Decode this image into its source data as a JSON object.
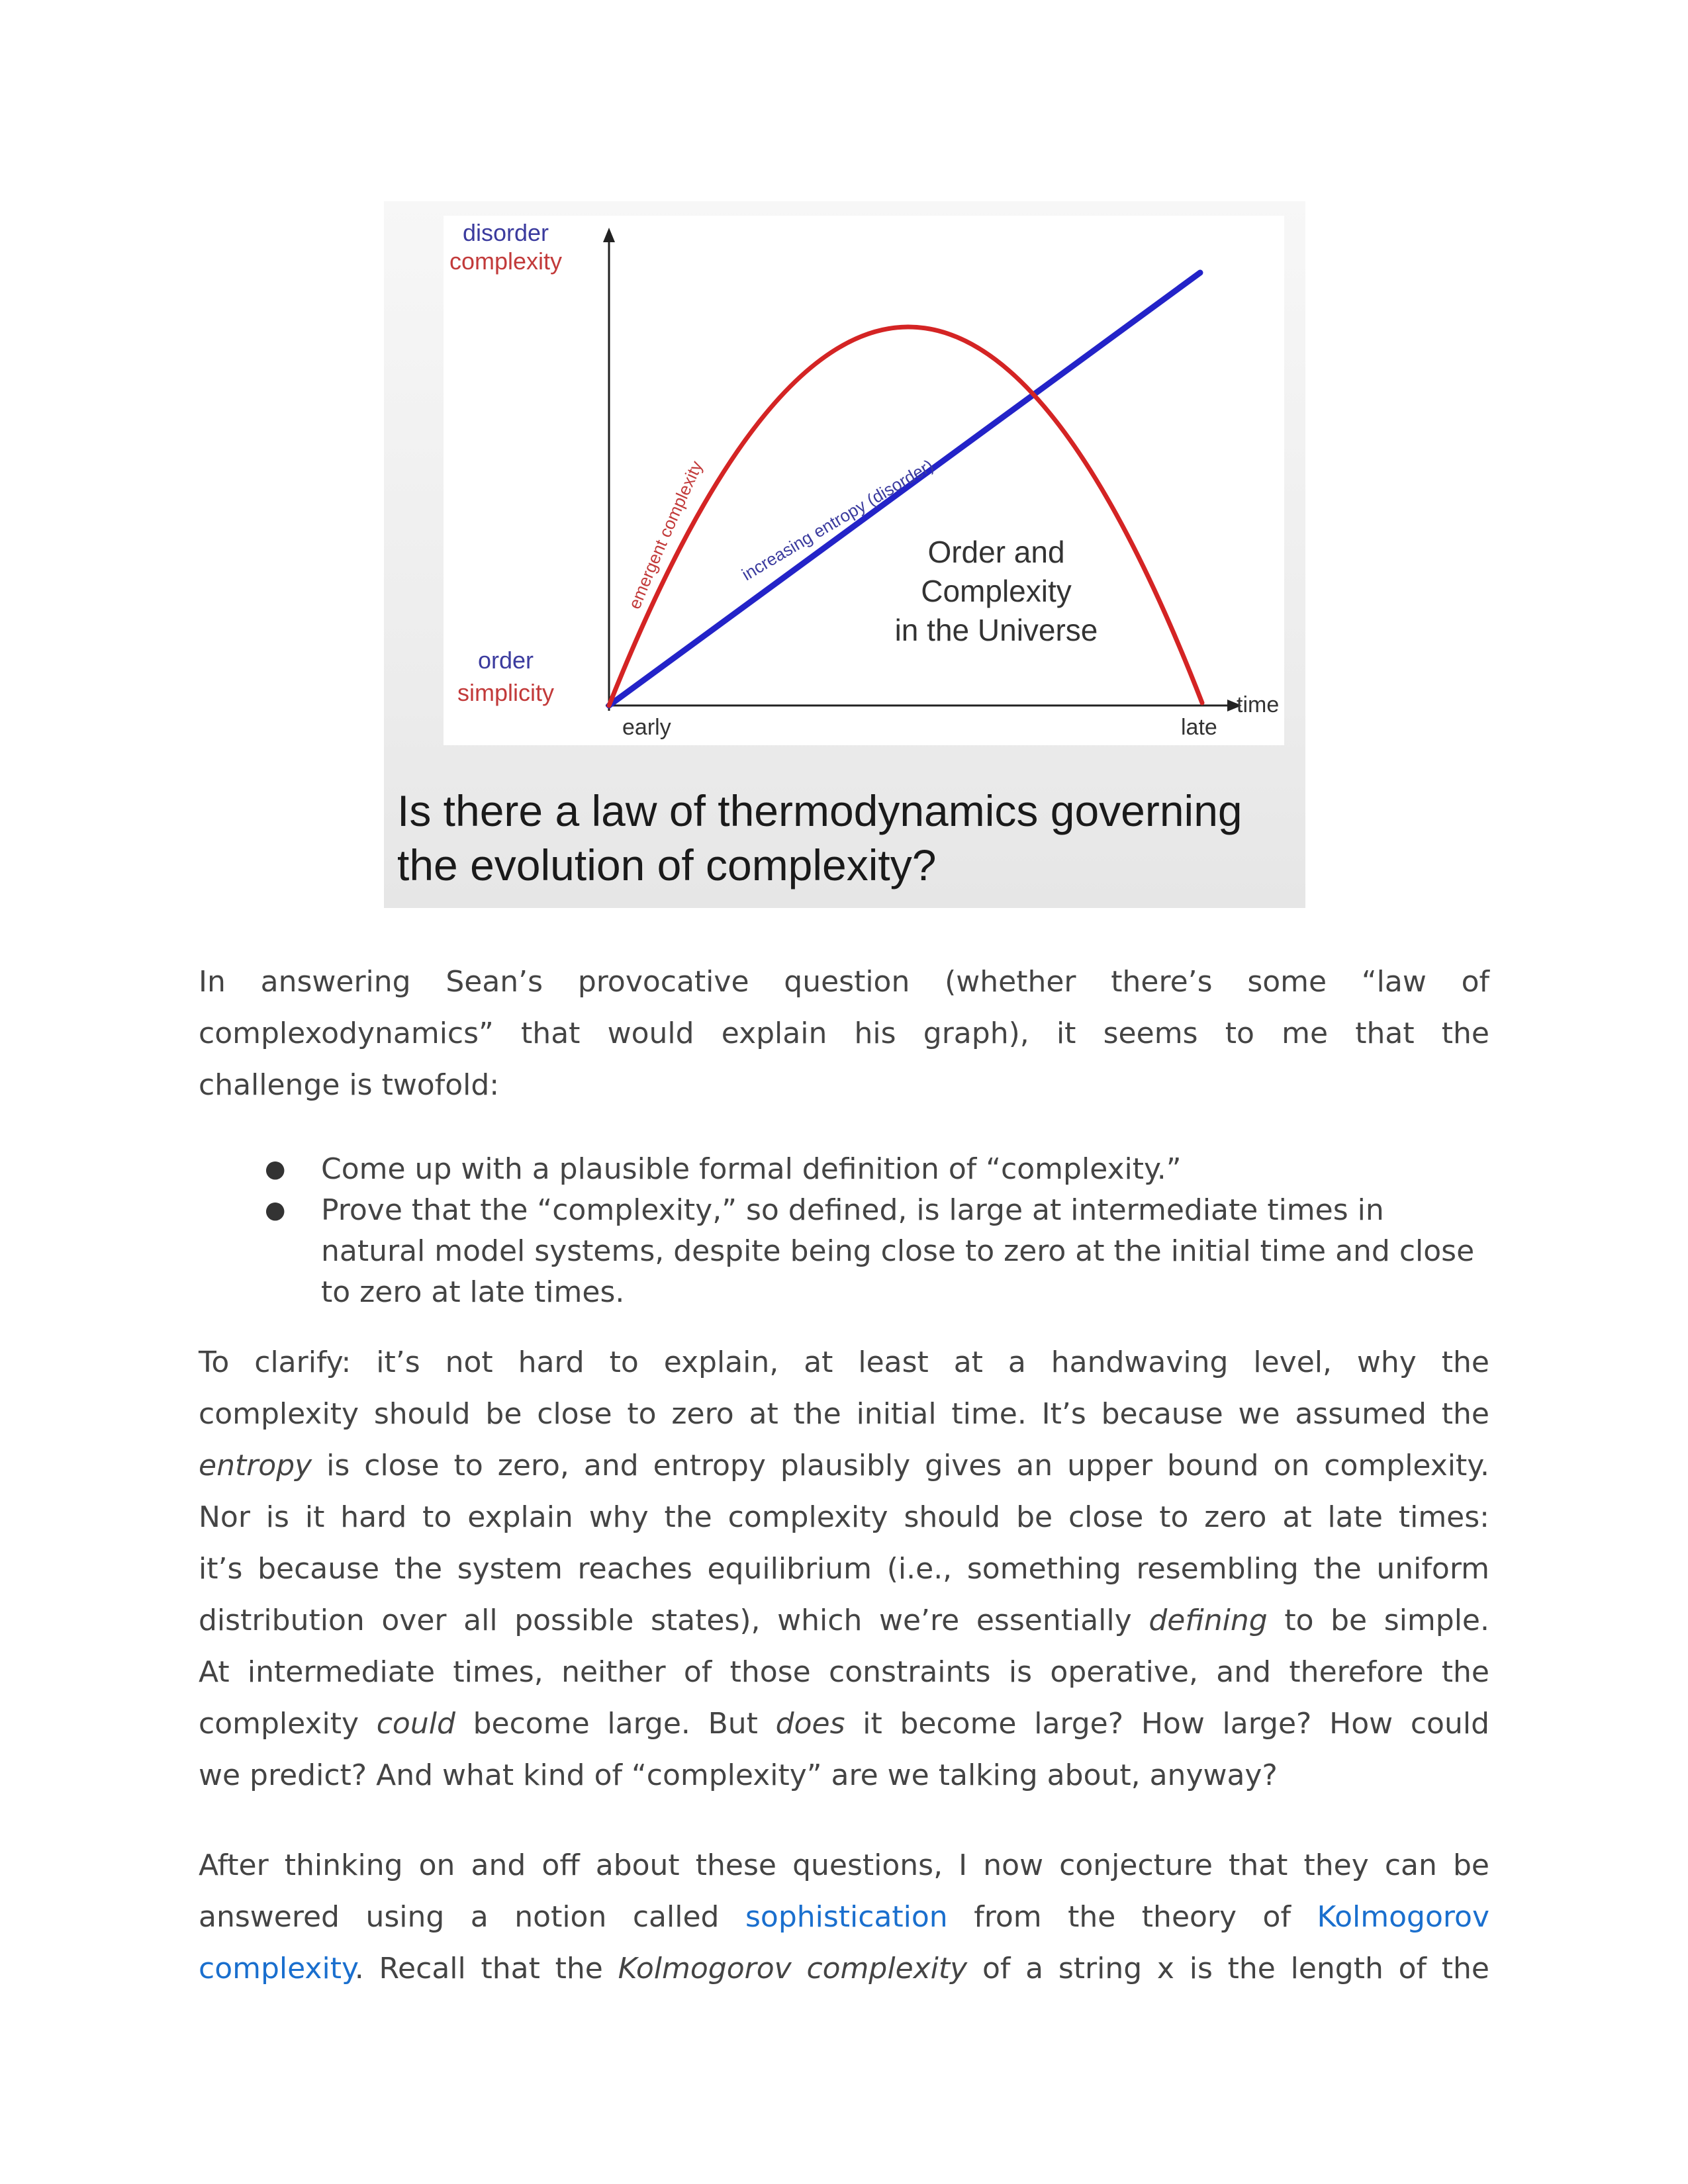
{
  "figure": {
    "y_labels_top": [
      "disorder",
      "complexity"
    ],
    "y_labels_bottom": [
      "order",
      "simplicity"
    ],
    "x_left_label": "early",
    "x_right_label": "late",
    "x_axis_label": "time",
    "curve_red_label": "emergent complexity",
    "curve_blue_label": "increasing entropy (disorder)",
    "inner_title": [
      "Order and",
      "Complexity",
      "in the Universe"
    ],
    "caption_lines": [
      "Is there a law of thermodynamics governing",
      "the evolution of complexity?"
    ],
    "colors": {
      "red": "#d42424",
      "blue": "#2323c8",
      "label_blue": "#3b3b9e",
      "label_red": "#c23a3a"
    }
  },
  "para1": {
    "line1": "In answering Sean’s provocative question (whether there’s some “law of",
    "line2": "complexodynamics” that would explain his graph), it seems to me that the",
    "line3": "challenge is twofold:"
  },
  "bullets": [
    {
      "marker": "●",
      "text": "Come up with a plausible formal definition of “complexity.”"
    },
    {
      "marker": "●",
      "text": "Prove that the “complexity,” so defined, is large at intermediate times in natural model systems, despite being close to zero at the initial time and close to zero at late times."
    }
  ],
  "para2": {
    "l1": "To clarify: it’s not hard to explain, at least at a handwaving level, why the",
    "l2": "complexity should be close to zero at the initial time.  It’s because we assumed the",
    "l3_em": "entropy",
    "l3_rest": " is close to zero, and entropy plausibly gives an upper bound on complexity.",
    "l4": "Nor is it hard to explain why the complexity should be close to zero at late times:",
    "l5": "it’s because the system reaches equilibrium (i.e., something resembling the uniform",
    "l6_a": "distribution over all possible states), which we’re essentially ",
    "l6_em": "defining",
    "l6_b": " to be simple.",
    "l7": "At intermediate times, neither of those constraints is operative, and therefore the",
    "l8_a": "complexity ",
    "l8_em1": "could",
    "l8_b": " become large.  But ",
    "l8_em2": "does",
    "l8_c": " it become large?  How large?  How could",
    "l9": "we predict?  And what kind of “complexity” are we talking about, anyway?"
  },
  "para3": {
    "l1": "After thinking on and off about these questions, I now conjecture that they can be",
    "l2_a": "answered using a notion called ",
    "l2_link1": "sophistication",
    "l2_b": " from the theory of ",
    "l2_link2a": "Kolmogorov",
    "l3_link2b": "complexity",
    "l3_a": ".  Recall that the ",
    "l3_em": "Kolmogorov complexity",
    "l3_b": " of a string x is the length of the"
  }
}
